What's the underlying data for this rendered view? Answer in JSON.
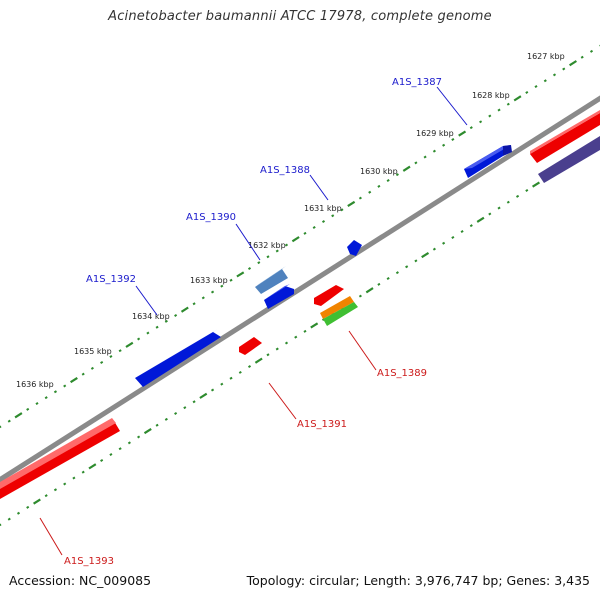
{
  "title": "Acinetobacter baumannii ATCC 17978, complete genome",
  "footer": {
    "accession": "Accession: NC_009085",
    "summary": "Topology: circular; Length: 3,976,747 bp; Genes: 3,435"
  },
  "colors": {
    "backbone": "#8c8c8c",
    "tick": "#2e8b2e",
    "forward_label": "#1a1acc",
    "reverse_label": "#cc1a1a"
  },
  "kbp_ticks": [
    "1627 kbp",
    "1628 kbp",
    "1629 kbp",
    "1630 kbp",
    "1631 kbp",
    "1632 kbp",
    "1633 kbp",
    "1634 kbp",
    "1635 kbp",
    "1636 kbp"
  ],
  "gene_labels": {
    "forward": [
      "A1S_1387",
      "A1S_1388",
      "A1S_1390",
      "A1S_1392"
    ],
    "reverse": [
      "A1S_1389",
      "A1S_1391",
      "A1S_1393"
    ]
  }
}
